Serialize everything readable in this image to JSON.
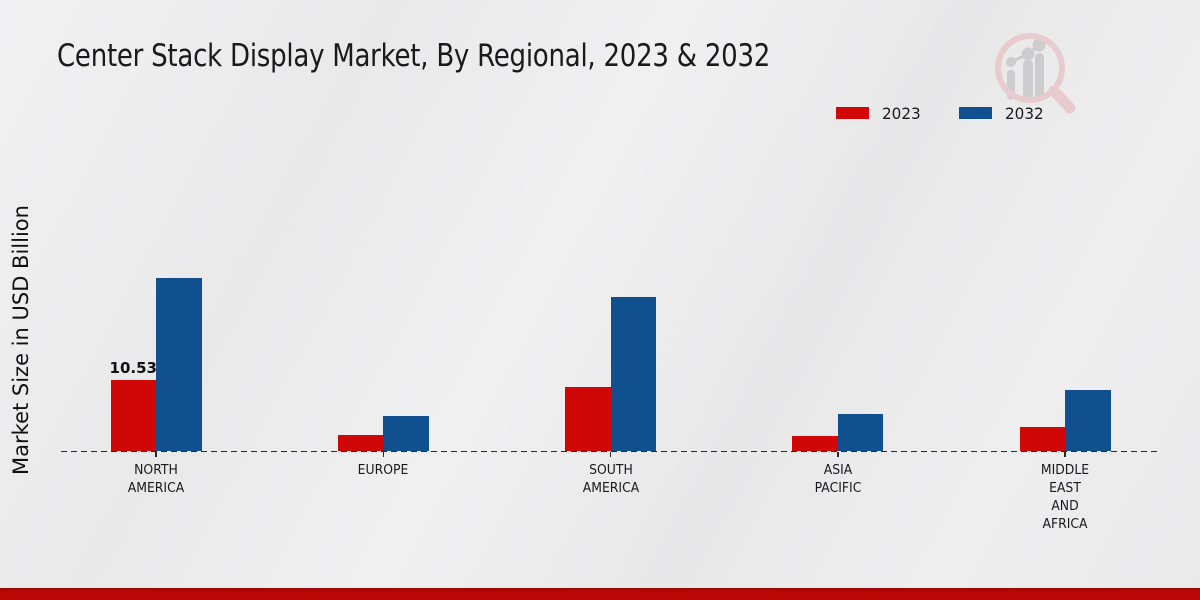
{
  "title": "Center Stack Display Market, By Regional, 2023 & 2032",
  "ylabel": "Market Size in USD Billion",
  "legend": {
    "items": [
      {
        "label": "2023",
        "color": "#cf0707"
      },
      {
        "label": "2032",
        "color": "#10508e"
      }
    ]
  },
  "footer": {
    "color": "#bb0606"
  },
  "chart_data": {
    "type": "bar",
    "title": "Center Stack Display Market, By Regional, 2023 & 2032",
    "ylabel": "Market Size in USD Billion",
    "categories": [
      "NORTH AMERICA",
      "EUROPE",
      "SOUTH AMERICA",
      "ASIA PACIFIC",
      "MIDDLE EAST AND AFRICA"
    ],
    "series": [
      {
        "name": "2023",
        "color": "#cf0707",
        "values": [
          10.53,
          2.4,
          9.55,
          2.3,
          3.65
        ]
      },
      {
        "name": "2032",
        "color": "#10508e",
        "values": [
          25.5,
          5.2,
          22.7,
          5.45,
          9.05
        ]
      }
    ],
    "data_labels": [
      {
        "series": "2023",
        "category": "NORTH AMERICA",
        "text": "10.53"
      }
    ],
    "ylim": [
      0,
      27
    ],
    "grid": false,
    "baseline_style": "dashed",
    "legend_position": "top-right"
  }
}
